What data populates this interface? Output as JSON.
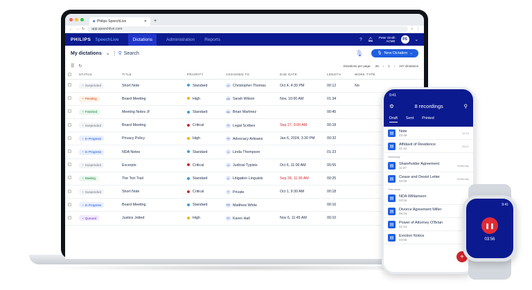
{
  "browser": {
    "tab_title": "Philips SpeechLive",
    "url": "app.speechlive.com"
  },
  "nav": {
    "brand": "PHILIPS",
    "product": "SpeechLive",
    "items": [
      "Dictations",
      "Administration",
      "Reports"
    ],
    "user_name": "Peter Smith",
    "user_org": "ACME",
    "user_initials": "PS",
    "help": "?"
  },
  "toolbar": {
    "title": "My dictations",
    "search_label": "Search",
    "new_label": "New Dictation"
  },
  "pager": {
    "per_page_label": "Dictations per page:",
    "per_page": "25",
    "page": "1",
    "total": "247 dictations"
  },
  "table": {
    "headers": [
      "STATUS",
      "TITLE",
      "PRIORITY",
      "ASSIGNED TO",
      "DUE DATE",
      "LENGTH",
      "WORK TYPE"
    ],
    "rows": [
      {
        "status": "Suspended",
        "title": "Short Note",
        "priority": "Standard",
        "assignee": "Christopher Thomas",
        "initials": "CT",
        "due": "Oct 4, 4:30 PM",
        "length": "00:12",
        "work": "No"
      },
      {
        "status": "Pending",
        "title": "Board Meeting",
        "priority": "High",
        "assignee": "Sarah Wilson",
        "initials": "SW",
        "due": "Nov, 10:00 AM",
        "length": "01:34",
        "work": ""
      },
      {
        "status": "Finished",
        "title": "Meeting Notes Jf",
        "priority": "Standard",
        "assignee": "Brian Martinez",
        "initials": "BM",
        "due": "",
        "length": "00:45",
        "work": ""
      },
      {
        "status": "Suspended",
        "title": "Board Meeting",
        "priority": "Critical",
        "assignee": "Legal Scribes",
        "initials": "LS",
        "due": "Sep 27, 9:00 AM",
        "length": "00:18",
        "work": ""
      },
      {
        "status": "In Progress",
        "title": "Privacy Policy",
        "priority": "High",
        "assignee": "Advocacy Artisans",
        "initials": "AA",
        "due": "Jan 6, 2024, 3:30 PM",
        "length": "00:32",
        "work": ""
      },
      {
        "status": "In Progress",
        "title": "NDA Notes",
        "priority": "Standard",
        "assignee": "Linda Thompson",
        "initials": "LT",
        "due": "",
        "length": "01:23",
        "work": ""
      },
      {
        "status": "Suspended",
        "title": "Excerpts",
        "priority": "Critical",
        "assignee": "Judicial Typists",
        "initials": "JT",
        "due": "Oct 6, 11:00 AM",
        "length": "00:55",
        "work": ""
      },
      {
        "status": "Waiting",
        "title": "The Tort Trail",
        "priority": "Standard",
        "assignee": "Litigation Linguists",
        "initials": "LL",
        "due": "Sep 28, 11:30 AM",
        "length": "00:25",
        "work": ""
      },
      {
        "status": "Suspended",
        "title": "Short Note",
        "priority": "Critical",
        "assignee": "Private",
        "initials": "P",
        "due": "Oct 1, 9:30 AM",
        "length": "00:18",
        "work": ""
      },
      {
        "status": "In Progress",
        "title": "Board Meeting",
        "priority": "Standard",
        "assignee": "Matthew White",
        "initials": "MW",
        "due": "",
        "length": "00:16",
        "work": ""
      },
      {
        "status": "Queued",
        "title": "Justice Jotted",
        "priority": "High",
        "assignee": "Karen Hall",
        "initials": "KH",
        "due": "Nov 6, 11:45 AM",
        "length": "00:10",
        "work": ""
      }
    ]
  },
  "colors": {
    "status": {
      "Suspended": "#6b7280",
      "Pending": "#c2410c",
      "Finished": "#15803d",
      "In Progress": "#1d4ed8",
      "Waiting": "#15803d",
      "Queued": "#6d28d9"
    },
    "status_bg": {
      "Suspended": "#f3f4f6",
      "Pending": "#fff1e6",
      "Finished": "#e8f7ee",
      "In Progress": "#e8f0ff",
      "Waiting": "#e8f7ee",
      "Queued": "#f1eaff"
    },
    "priority": {
      "Standard": "#3b9ce0",
      "High": "#f2b400",
      "Critical": "#d0262d"
    }
  },
  "phone": {
    "clock": "9:41",
    "title": "8 recordings",
    "tabs": [
      "Draft",
      "Sent",
      "Printed"
    ],
    "items": [
      {
        "name": "Note",
        "sub": "03:49",
        "time": "10:23"
      },
      {
        "name": "Affidavit of Residence",
        "sub": "01:42",
        "time": "09:47"
      }
    ],
    "section_yesterday": "Yesterday",
    "items2": [
      {
        "name": "Shareholder Agreement",
        "sub": "11:37",
        "time": "Yesterday"
      },
      {
        "name": "Cease and Desist Letter",
        "sub": "03:30",
        "time": "Yesterday"
      }
    ],
    "section_week": "This week",
    "items3": [
      {
        "name": "NDA Williamson",
        "sub": "03:16",
        "time": ""
      },
      {
        "name": "Divorce Agreement Miller",
        "sub": "05:15",
        "time": "14"
      },
      {
        "name": "Power of Attorney O'Brian",
        "sub": "01:44",
        "time": ""
      },
      {
        "name": "Eviction Notice",
        "sub": "04:55",
        "time": ""
      }
    ]
  },
  "watch": {
    "clock": "9:41",
    "time": "03:56"
  }
}
